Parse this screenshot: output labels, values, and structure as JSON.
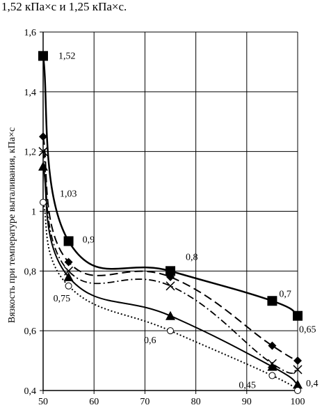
{
  "header": {
    "text": "1,52 кПа×с и 1,25 кПа×с."
  },
  "chart_data": {
    "type": "line",
    "ylabel": "Вязкость при температуре выталивания, кПа×с",
    "xlabel": "",
    "xlim": [
      50,
      100
    ],
    "ylim": [
      0.4,
      1.6
    ],
    "x_ticks": [
      "50",
      "60",
      "70",
      "80",
      "90",
      "100"
    ],
    "y_ticks": [
      "0,4",
      "0,6",
      "0,8",
      "1",
      "1,2",
      "1,4",
      "1,6"
    ],
    "grid": true,
    "series": [
      {
        "marker": "square",
        "line": "solid-thick",
        "color": "#000000",
        "x": [
          50,
          55,
          75,
          95,
          100
        ],
        "y": [
          1.52,
          0.9,
          0.8,
          0.7,
          0.65
        ]
      },
      {
        "marker": "diamond",
        "line": "long-dash",
        "color": "#000000",
        "x": [
          50,
          55,
          75,
          95,
          100
        ],
        "y": [
          1.25,
          0.83,
          0.78,
          0.55,
          0.5
        ]
      },
      {
        "marker": "cross",
        "line": "dash-dot",
        "color": "#000000",
        "x": [
          50,
          55,
          75,
          95,
          100
        ],
        "y": [
          1.2,
          0.8,
          0.75,
          0.49,
          0.47
        ]
      },
      {
        "marker": "triangle",
        "line": "solid",
        "color": "#000000",
        "x": [
          50,
          55,
          75,
          95,
          100
        ],
        "y": [
          1.15,
          0.78,
          0.65,
          0.48,
          0.42
        ]
      },
      {
        "marker": "circle",
        "line": "dotted",
        "color": "#000000",
        "x": [
          50,
          55,
          75,
          95,
          100
        ],
        "y": [
          1.03,
          0.75,
          0.6,
          0.45,
          0.4
        ]
      }
    ],
    "annotations": [
      {
        "text": "1,52",
        "x": 50,
        "y": 1.52
      },
      {
        "text": "1,03",
        "x": 50,
        "y": 1.03
      },
      {
        "text": "0,9",
        "x": 55,
        "y": 0.9
      },
      {
        "text": "0,75",
        "x": 55,
        "y": 0.75
      },
      {
        "text": "0,8",
        "x": 75,
        "y": 0.8
      },
      {
        "text": "0,6",
        "x": 75,
        "y": 0.6
      },
      {
        "text": "0,7",
        "x": 95,
        "y": 0.7
      },
      {
        "text": "0,65",
        "x": 100,
        "y": 0.65
      },
      {
        "text": "0,45",
        "x": 95,
        "y": 0.45
      },
      {
        "text": "0,4",
        "x": 100,
        "y": 0.4
      }
    ]
  }
}
